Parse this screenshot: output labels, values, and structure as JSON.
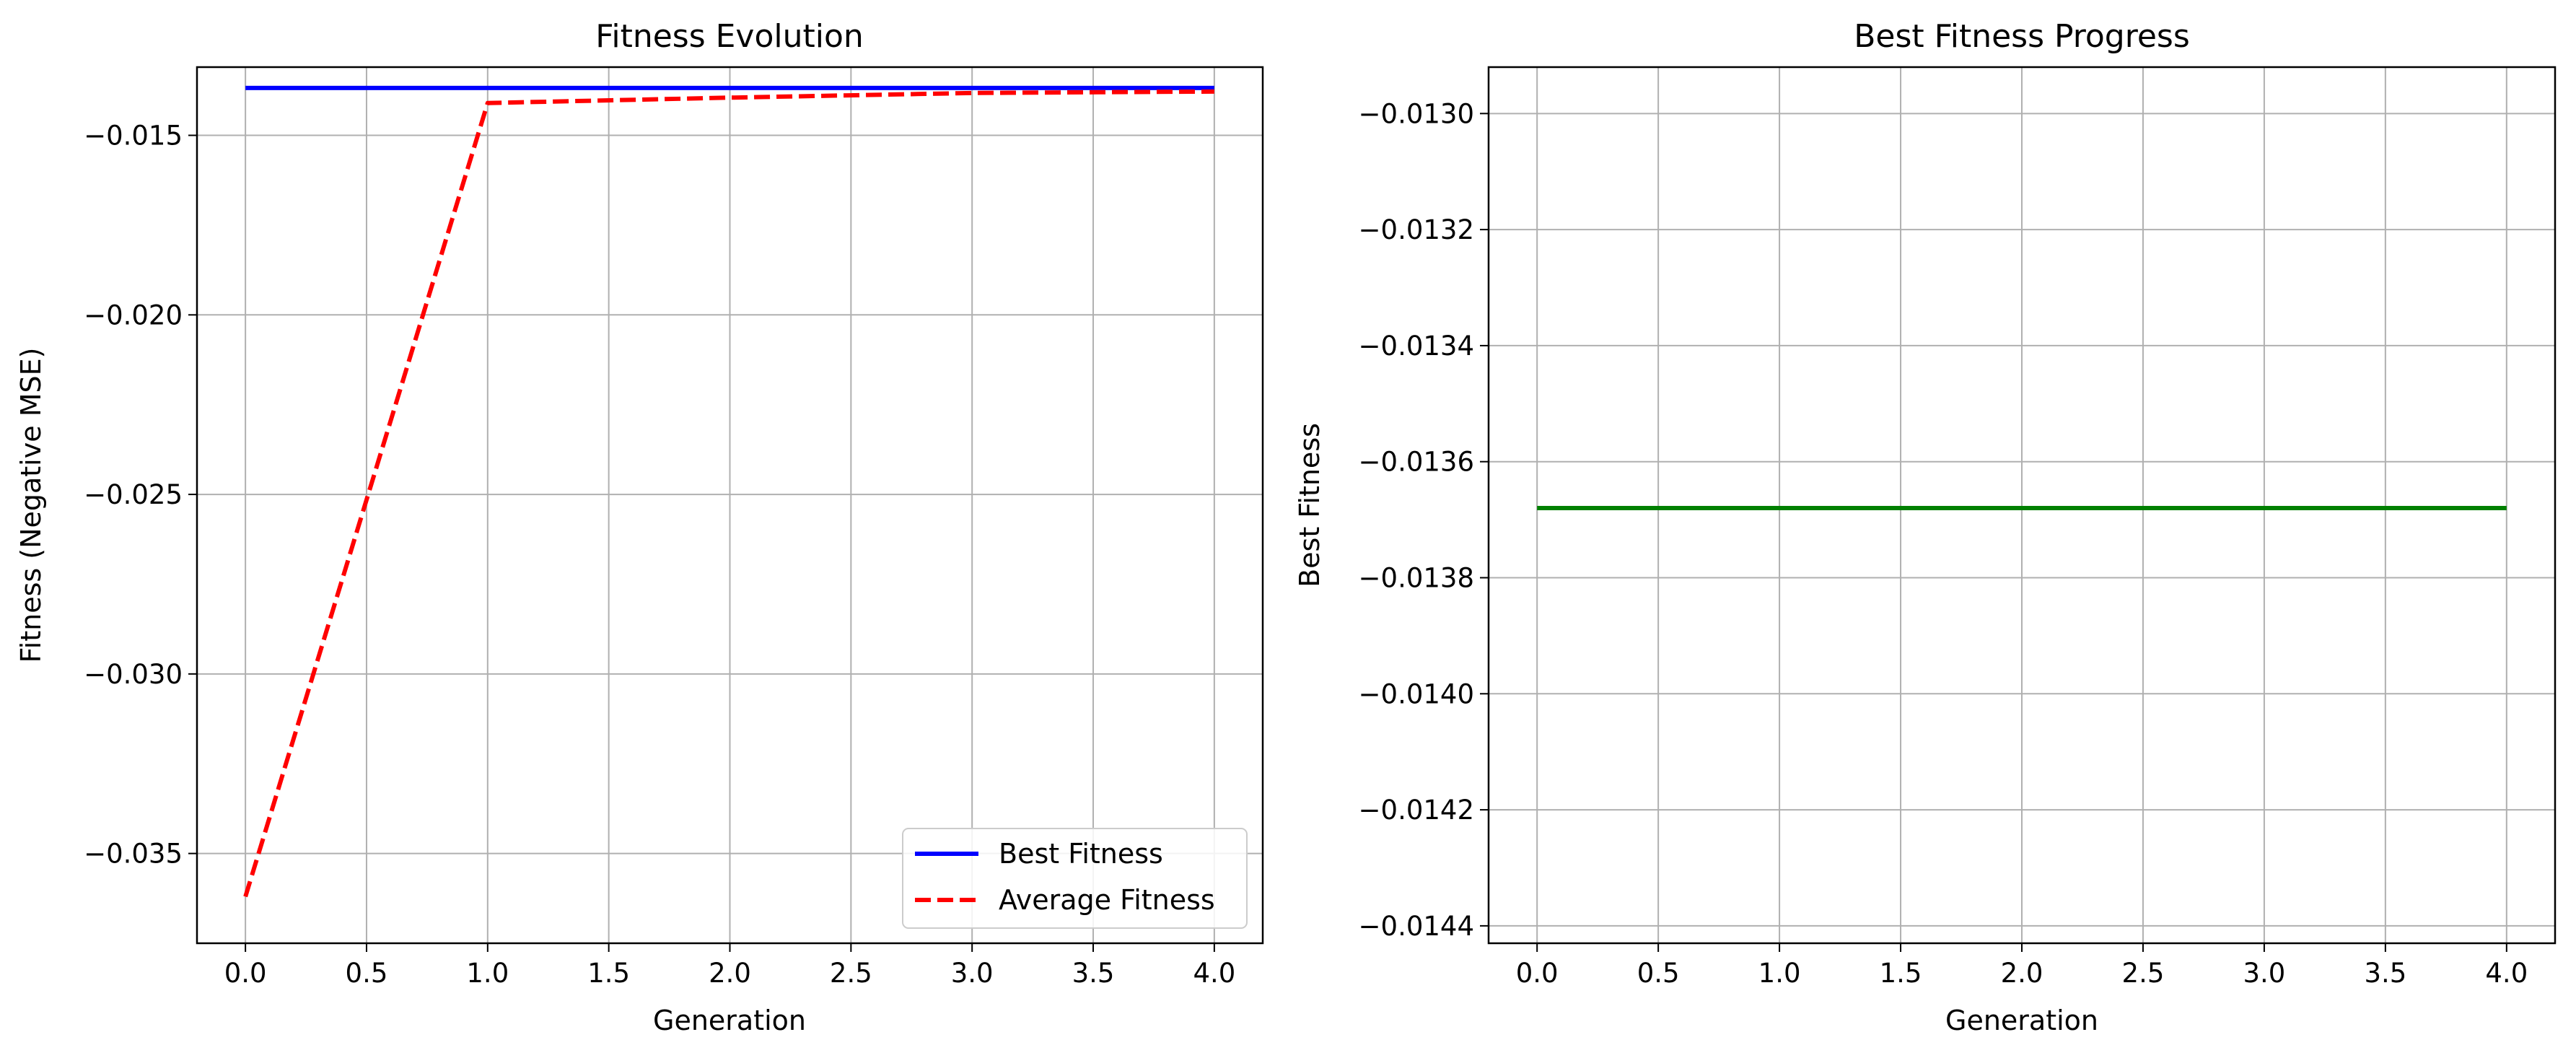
{
  "chart_data": [
    {
      "type": "line",
      "title": "Fitness Evolution",
      "xlabel": "Generation",
      "ylabel": "Fitness (Negative MSE)",
      "xlim": [
        -0.2,
        4.2
      ],
      "ylim": [
        -0.0375,
        -0.0131
      ],
      "xticks": [
        0.0,
        0.5,
        1.0,
        1.5,
        2.0,
        2.5,
        3.0,
        3.5,
        4.0
      ],
      "xtick_labels": [
        "0.0",
        "0.5",
        "1.0",
        "1.5",
        "2.0",
        "2.5",
        "3.0",
        "3.5",
        "4.0"
      ],
      "yticks": [
        -0.035,
        -0.03,
        -0.025,
        -0.02,
        -0.015
      ],
      "ytick_labels": [
        "−0.035",
        "−0.030",
        "−0.025",
        "−0.020",
        "−0.015"
      ],
      "grid": true,
      "legend_position": "lower-right",
      "x": [
        0,
        1,
        2,
        3,
        4
      ],
      "series": [
        {
          "name": "Best Fitness",
          "values": [
            -0.01368,
            -0.01368,
            -0.01368,
            -0.01368,
            -0.01368
          ],
          "color": "#0000ff",
          "style": "solid"
        },
        {
          "name": "Average Fitness",
          "values": [
            -0.0362,
            -0.0141,
            -0.01395,
            -0.01382,
            -0.01378
          ],
          "color": "#ff0000",
          "style": "dashed"
        }
      ]
    },
    {
      "type": "line",
      "title": "Best Fitness Progress",
      "xlabel": "Generation",
      "ylabel": "Best Fitness",
      "xlim": [
        -0.2,
        4.2
      ],
      "ylim": [
        -0.01443,
        -0.01292
      ],
      "xticks": [
        0.0,
        0.5,
        1.0,
        1.5,
        2.0,
        2.5,
        3.0,
        3.5,
        4.0
      ],
      "xtick_labels": [
        "0.0",
        "0.5",
        "1.0",
        "1.5",
        "2.0",
        "2.5",
        "3.0",
        "3.5",
        "4.0"
      ],
      "yticks": [
        -0.0144,
        -0.0142,
        -0.014,
        -0.0138,
        -0.0136,
        -0.0134,
        -0.0132,
        -0.013
      ],
      "ytick_labels": [
        "−0.0144",
        "−0.0142",
        "−0.0140",
        "−0.0138",
        "−0.0136",
        "−0.0134",
        "−0.0132",
        "−0.0130"
      ],
      "grid": true,
      "x": [
        0,
        1,
        2,
        3,
        4
      ],
      "series": [
        {
          "values": [
            -0.01368,
            -0.01368,
            -0.01368,
            -0.01368,
            -0.01368
          ],
          "color": "#008000",
          "style": "solid"
        }
      ]
    }
  ]
}
